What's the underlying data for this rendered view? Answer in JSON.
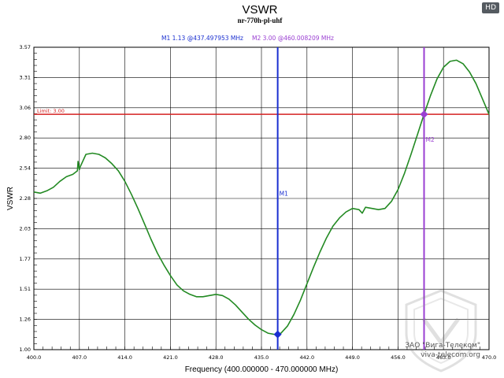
{
  "badge": "HD",
  "watermark": {
    "company": "ЗАО \"Вига-Телеком\"",
    "site": "viva-telecom.org"
  },
  "colors": {
    "series": "#238a23",
    "limit": "#d42020",
    "m1": "#1a2fd0",
    "m2": "#9a3fd2",
    "grid": "#000000"
  },
  "chart_data": {
    "type": "line",
    "title": "VSWR",
    "subtitle": "nr-770h-pl-uhf",
    "xlabel": "Frequency (400.000000 - 470.000000 MHz)",
    "ylabel": "VSWR",
    "xlim": [
      400.0,
      470.0
    ],
    "ylim": [
      1.0,
      3.57
    ],
    "x_ticks": [
      "400.0",
      "407.0",
      "414.0",
      "421.0",
      "428.0",
      "435.0",
      "442.0",
      "449.0",
      "456.0",
      "463.0",
      "470.0"
    ],
    "y_ticks": [
      "1.00",
      "1.26",
      "1.51",
      "1.77",
      "2.03",
      "2.28",
      "2.54",
      "2.80",
      "3.06",
      "3.31",
      "3.57"
    ],
    "grid": true,
    "limit": {
      "label": "Limit: 3.00",
      "value": 3.0
    },
    "markers": [
      {
        "name": "M1",
        "x": 437.497953,
        "y": 1.13,
        "readout": "M1   1.13 @437.497953 MHz"
      },
      {
        "name": "M2",
        "x": 460.008209,
        "y": 3.0,
        "readout": "M2   3.00 @460.008209 MHz"
      }
    ],
    "series": [
      {
        "x": [
          400.0,
          401.0,
          402.0,
          403.0,
          404.0,
          405.0,
          406.0,
          406.7,
          406.8,
          407.0,
          407.1,
          408.0,
          409.0,
          410.0,
          411.0,
          412.0,
          413.0,
          414.0,
          415.0,
          416.0,
          417.0,
          418.0,
          419.0,
          420.0,
          421.0,
          422.0,
          423.0,
          424.0,
          425.0,
          426.0,
          427.0,
          428.0,
          429.0,
          430.0,
          431.0,
          432.0,
          433.0,
          434.0,
          435.0,
          436.0,
          437.0,
          437.5,
          438.0,
          439.0,
          440.0,
          441.0,
          442.0,
          443.0,
          444.0,
          445.0,
          446.0,
          447.0,
          448.0,
          449.0,
          450.0,
          450.5,
          451.0,
          452.0,
          453.0,
          454.0,
          455.0,
          456.0,
          457.0,
          458.0,
          459.0,
          460.0,
          461.0,
          462.0,
          463.0,
          464.0,
          465.0,
          466.0,
          467.0,
          468.0,
          469.0,
          470.0
        ],
        "values": [
          2.34,
          2.33,
          2.35,
          2.38,
          2.43,
          2.47,
          2.49,
          2.52,
          2.6,
          2.53,
          2.55,
          2.66,
          2.67,
          2.66,
          2.63,
          2.58,
          2.52,
          2.43,
          2.32,
          2.2,
          2.07,
          1.94,
          1.82,
          1.72,
          1.63,
          1.55,
          1.5,
          1.47,
          1.45,
          1.45,
          1.46,
          1.47,
          1.46,
          1.43,
          1.38,
          1.32,
          1.26,
          1.21,
          1.17,
          1.14,
          1.13,
          1.13,
          1.14,
          1.2,
          1.3,
          1.42,
          1.56,
          1.7,
          1.83,
          1.95,
          2.05,
          2.12,
          2.17,
          2.2,
          2.19,
          2.16,
          2.21,
          2.2,
          2.19,
          2.2,
          2.26,
          2.36,
          2.5,
          2.66,
          2.83,
          3.0,
          3.16,
          3.3,
          3.4,
          3.45,
          3.46,
          3.43,
          3.36,
          3.26,
          3.13,
          3.0
        ]
      }
    ]
  }
}
